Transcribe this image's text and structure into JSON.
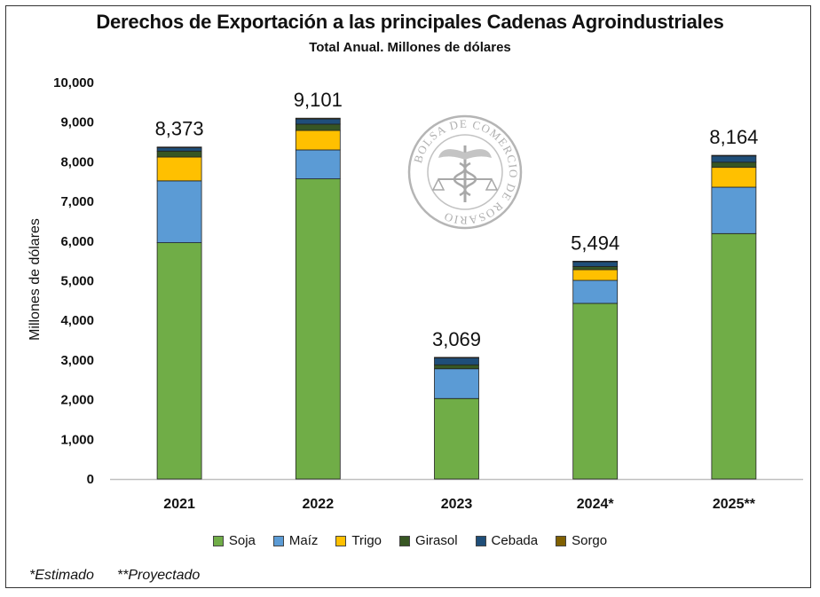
{
  "chart_data": {
    "type": "bar",
    "stacked": true,
    "title": "Derechos de Exportación a las principales Cadenas Agroindustriales",
    "subtitle": "Total Anual. Millones de dólares",
    "ylabel": "Millones de dólares",
    "xlabel": "",
    "ylim": [
      0,
      10000
    ],
    "yticks": [
      "0",
      "1,000",
      "2,000",
      "3,000",
      "4,000",
      "5,000",
      "6,000",
      "7,000",
      "8,000",
      "9,000",
      "10,000"
    ],
    "categories": [
      "2021",
      "2022",
      "2023",
      "2024*",
      "2025**"
    ],
    "series": [
      {
        "name": "Soja",
        "color": "#70ad47",
        "values": [
          5960,
          7570,
          2030,
          4430,
          6190
        ]
      },
      {
        "name": "Maíz",
        "color": "#5b9bd5",
        "values": [
          1560,
          730,
          750,
          580,
          1170
        ]
      },
      {
        "name": "Trigo",
        "color": "#ffc000",
        "values": [
          600,
          490,
          0,
          270,
          500
        ]
      },
      {
        "name": "Girasol",
        "color": "#375623",
        "values": [
          150,
          160,
          100,
          80,
          130
        ]
      },
      {
        "name": "Cebada",
        "color": "#1f4e79",
        "values": [
          90,
          130,
          180,
          130,
          160
        ]
      },
      {
        "name": "Sorgo",
        "color": "#806000",
        "values": [
          13,
          21,
          9,
          4,
          14
        ]
      }
    ],
    "totals": [
      "8,373",
      "9,101",
      "3,069",
      "5,494",
      "8,164"
    ],
    "grid": false,
    "legend": "bottom"
  },
  "footnotes": [
    "*Estimado",
    "**Proyectado"
  ],
  "watermark": {
    "text": "BOLSA DE COMERCIO DE ROSARIO",
    "icon": "caduceus-scales-seal-icon"
  }
}
